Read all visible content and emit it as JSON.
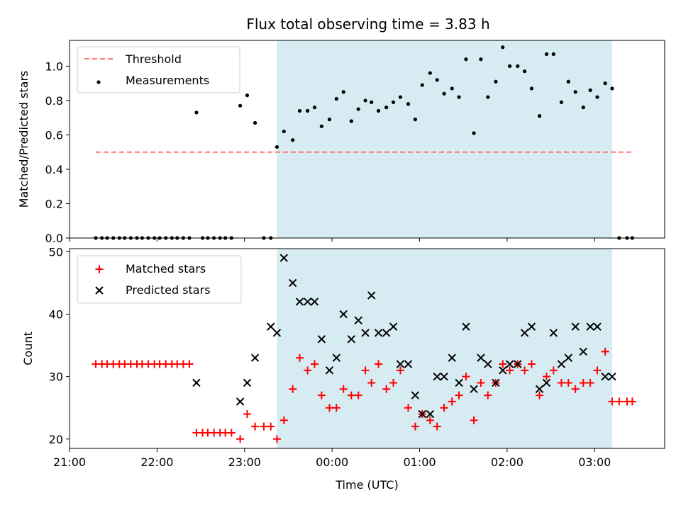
{
  "title": "Flux total observing time = 3.83 h",
  "colors": {
    "threshold": "#ff7777",
    "measurement": "#000000",
    "matched": "#ff0000",
    "predicted": "#000000",
    "shade": "#add8e6"
  },
  "chart_data": [
    {
      "type": "scatter",
      "ylabel": "Matched/Predicted stars",
      "ylim": [
        0,
        1.15
      ],
      "yticks": [
        0.0,
        0.2,
        0.4,
        0.6,
        0.8,
        1.0
      ],
      "ytick_labels": [
        "0.0",
        "0.2",
        "0.4",
        "0.6",
        "0.8",
        "1.0"
      ],
      "xlim": [
        21.0,
        27.8
      ],
      "shaded_span": [
        23.37,
        27.2
      ],
      "legend_position": "upper-left",
      "threshold": {
        "name": "Threshold",
        "value": 0.5,
        "x_range": [
          21.3,
          27.43
        ]
      },
      "series": [
        {
          "name": "Measurements",
          "x": [
            21.3,
            21.37,
            21.43,
            21.5,
            21.57,
            21.63,
            21.7,
            21.77,
            21.83,
            21.9,
            21.97,
            22.03,
            22.1,
            22.17,
            22.23,
            22.3,
            22.37,
            22.45,
            22.52,
            22.58,
            22.65,
            22.72,
            22.78,
            22.85,
            22.95,
            23.03,
            23.12,
            23.22,
            23.3,
            23.37,
            23.45,
            23.55,
            23.63,
            23.72,
            23.8,
            23.88,
            23.97,
            24.05,
            24.13,
            24.22,
            24.3,
            24.38,
            24.45,
            24.53,
            24.62,
            24.7,
            24.78,
            24.87,
            24.95,
            25.03,
            25.12,
            25.2,
            25.28,
            25.37,
            25.45,
            25.53,
            25.62,
            25.7,
            25.78,
            25.87,
            25.95,
            26.03,
            26.12,
            26.2,
            26.28,
            26.37,
            26.45,
            26.53,
            26.62,
            26.7,
            26.78,
            26.87,
            26.95,
            27.03,
            27.12,
            27.2,
            27.28,
            27.37,
            27.43
          ],
          "y": [
            0,
            0,
            0,
            0,
            0,
            0,
            0,
            0,
            0,
            0,
            0,
            0,
            0,
            0,
            0,
            0,
            0,
            0.73,
            0,
            0,
            0,
            0,
            0,
            0,
            0.77,
            0.83,
            0.67,
            0,
            0,
            0.53,
            0.62,
            0.57,
            0.74,
            0.74,
            0.76,
            0.65,
            0.69,
            0.81,
            0.85,
            0.68,
            0.75,
            0.8,
            0.79,
            0.74,
            0.76,
            0.79,
            0.82,
            0.78,
            0.69,
            0.89,
            0.96,
            0.92,
            0.84,
            0.87,
            0.82,
            1.04,
            0.61,
            1.04,
            0.82,
            0.91,
            1.11,
            1.0,
            1.0,
            0.97,
            0.87,
            0.71,
            1.07,
            1.07,
            0.79,
            0.91,
            0.85,
            0.76,
            0.86,
            0.82,
            0.9,
            0.87,
            0,
            0,
            0
          ]
        }
      ]
    },
    {
      "type": "scatter",
      "xlabel": "Time (UTC)",
      "ylabel": "Count",
      "ylim": [
        18.5,
        50.5
      ],
      "yticks": [
        20,
        30,
        40,
        50
      ],
      "ytick_labels": [
        "20",
        "30",
        "40",
        "50"
      ],
      "xlim": [
        21.0,
        27.8
      ],
      "xticks": [
        21,
        22,
        23,
        24,
        25,
        26,
        27
      ],
      "xtick_labels": [
        "21:00",
        "22:00",
        "23:00",
        "00:00",
        "01:00",
        "02:00",
        "03:00"
      ],
      "shaded_span": [
        23.37,
        27.2
      ],
      "legend_position": "upper-left",
      "series": [
        {
          "name": "Matched stars",
          "marker": "plus",
          "x": [
            21.3,
            21.37,
            21.43,
            21.5,
            21.57,
            21.63,
            21.7,
            21.77,
            21.83,
            21.9,
            21.97,
            22.03,
            22.1,
            22.17,
            22.23,
            22.3,
            22.37,
            22.45,
            22.52,
            22.58,
            22.65,
            22.72,
            22.78,
            22.85,
            22.95,
            23.03,
            23.12,
            23.22,
            23.3,
            23.37,
            23.45,
            23.55,
            23.63,
            23.72,
            23.8,
            23.88,
            23.97,
            24.05,
            24.13,
            24.22,
            24.3,
            24.38,
            24.45,
            24.53,
            24.62,
            24.7,
            24.78,
            24.87,
            24.95,
            25.03,
            25.12,
            25.2,
            25.28,
            25.37,
            25.45,
            25.53,
            25.62,
            25.7,
            25.78,
            25.87,
            25.95,
            26.03,
            26.12,
            26.2,
            26.28,
            26.37,
            26.45,
            26.53,
            26.62,
            26.7,
            26.78,
            26.87,
            26.95,
            27.03,
            27.12,
            27.2,
            27.28,
            27.37,
            27.43
          ],
          "y": [
            32,
            32,
            32,
            32,
            32,
            32,
            32,
            32,
            32,
            32,
            32,
            32,
            32,
            32,
            32,
            32,
            32,
            21,
            21,
            21,
            21,
            21,
            21,
            21,
            20,
            24,
            22,
            22,
            22,
            20,
            23,
            28,
            33,
            31,
            32,
            27,
            25,
            25,
            28,
            27,
            27,
            31,
            29,
            32,
            28,
            29,
            31,
            25,
            22,
            24,
            23,
            22,
            25,
            26,
            27,
            30,
            23,
            29,
            27,
            29,
            32,
            31,
            32,
            31,
            32,
            27,
            30,
            31,
            29,
            29,
            28,
            29,
            29,
            31,
            34,
            26,
            26,
            26,
            26
          ]
        },
        {
          "name": "Predicted stars",
          "marker": "x",
          "x": [
            22.45,
            22.95,
            23.03,
            23.12,
            23.3,
            23.37,
            23.45,
            23.55,
            23.63,
            23.72,
            23.8,
            23.88,
            23.97,
            24.05,
            24.13,
            24.22,
            24.3,
            24.38,
            24.45,
            24.53,
            24.62,
            24.7,
            24.78,
            24.87,
            24.95,
            25.03,
            25.12,
            25.2,
            25.28,
            25.37,
            25.45,
            25.53,
            25.62,
            25.7,
            25.78,
            25.87,
            25.95,
            26.03,
            26.12,
            26.2,
            26.28,
            26.37,
            26.45,
            26.53,
            26.62,
            26.7,
            26.78,
            26.87,
            26.95,
            27.03,
            27.12,
            27.2
          ],
          "y": [
            29,
            26,
            29,
            33,
            38,
            37,
            49,
            45,
            42,
            42,
            42,
            36,
            31,
            33,
            40,
            36,
            39,
            37,
            43,
            37,
            37,
            38,
            32,
            32,
            27,
            24,
            24,
            30,
            30,
            33,
            29,
            38,
            28,
            33,
            32,
            29,
            31,
            32,
            32,
            37,
            38,
            28,
            29,
            37,
            32,
            33,
            38,
            34,
            38,
            38,
            30,
            30
          ]
        }
      ]
    }
  ]
}
